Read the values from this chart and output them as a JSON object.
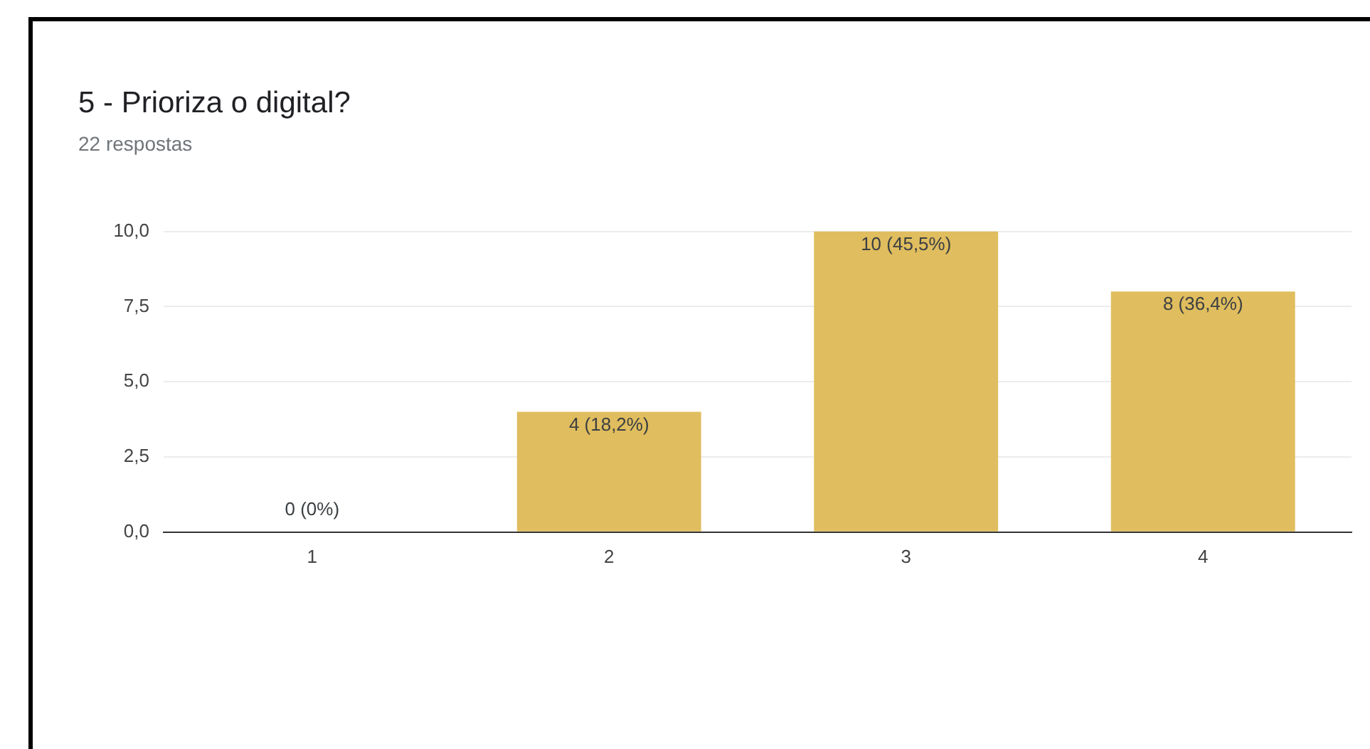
{
  "chart_data": {
    "type": "bar",
    "title": "5 - Prioriza o digital?",
    "subtitle": "22 respostas",
    "categories": [
      "1",
      "2",
      "3",
      "4"
    ],
    "values": [
      0,
      4,
      10,
      8
    ],
    "value_labels": [
      "0 (0%)",
      "4 (18,2%)",
      "10 (45,5%)",
      "8 (36,4%)"
    ],
    "color": "#e0bd5e",
    "ylim": [
      0,
      10
    ],
    "yticks": [
      {
        "value": 0,
        "label": "0,0"
      },
      {
        "value": 2.5,
        "label": "2,5"
      },
      {
        "value": 5,
        "label": "5,0"
      },
      {
        "value": 7.5,
        "label": "7,5"
      },
      {
        "value": 10,
        "label": "10,0"
      }
    ],
    "grid": "y",
    "legend": false
  }
}
